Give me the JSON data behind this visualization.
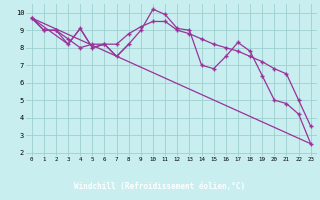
{
  "xlabel": "Windchill (Refroidissement éolien,°C)",
  "bg_color": "#c8eef0",
  "grid_color": "#9ecfcf",
  "line_color": "#993399",
  "xlabel_bg": "#4a2070",
  "xlabel_fg": "#ffffff",
  "xlim": [
    -0.5,
    23.5
  ],
  "ylim": [
    1.8,
    10.5
  ],
  "yticks": [
    2,
    3,
    4,
    5,
    6,
    7,
    8,
    9,
    10
  ],
  "xticks": [
    0,
    1,
    2,
    3,
    4,
    5,
    6,
    7,
    8,
    9,
    10,
    11,
    12,
    13,
    14,
    15,
    16,
    17,
    18,
    19,
    20,
    21,
    22,
    23
  ],
  "series1_x": [
    0,
    1,
    2,
    3,
    4,
    5,
    6,
    7,
    8,
    9,
    10,
    11,
    12,
    13,
    14,
    15,
    16,
    17,
    18,
    19,
    20,
    21,
    22,
    23
  ],
  "series1_y": [
    9.7,
    9.0,
    9.0,
    8.2,
    9.1,
    8.0,
    8.2,
    7.5,
    8.2,
    9.0,
    10.2,
    9.9,
    9.1,
    9.0,
    7.0,
    6.8,
    7.5,
    8.3,
    7.8,
    6.4,
    5.0,
    4.8,
    4.2,
    2.5
  ],
  "series2_x": [
    0,
    1,
    2,
    3,
    4,
    5,
    6,
    7,
    8,
    9,
    10,
    11,
    12,
    13,
    14,
    15,
    16,
    17,
    18,
    19,
    20,
    21,
    22,
    23
  ],
  "series2_y": [
    9.7,
    9.0,
    9.0,
    8.5,
    8.0,
    8.2,
    8.2,
    8.2,
    8.8,
    9.2,
    9.5,
    9.5,
    9.0,
    8.8,
    8.5,
    8.2,
    8.0,
    7.8,
    7.5,
    7.2,
    6.8,
    6.5,
    5.0,
    3.5
  ],
  "series3_x": [
    0,
    3,
    4,
    5,
    6,
    7,
    8
  ],
  "series3_y": [
    9.7,
    8.2,
    9.1,
    8.0,
    8.2,
    7.5,
    8.2
  ],
  "series4_x": [
    0,
    23
  ],
  "series4_y": [
    9.7,
    2.5
  ]
}
